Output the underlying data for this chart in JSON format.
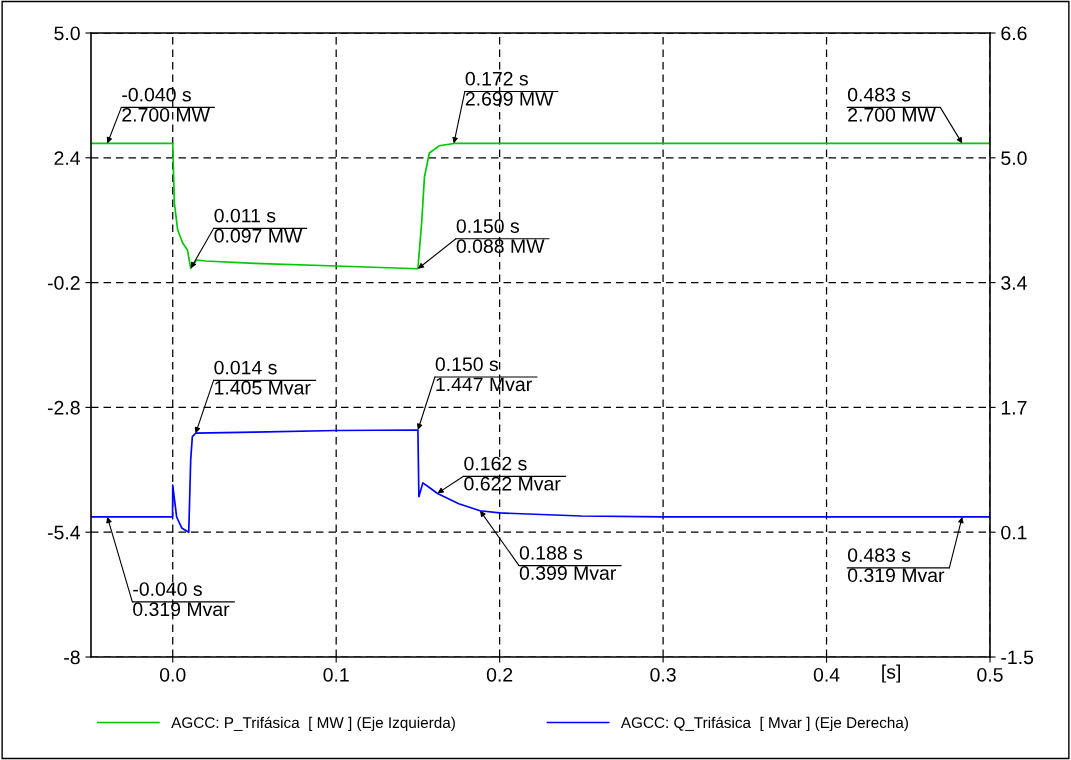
{
  "chart_data": {
    "type": "line",
    "xlabel": "[s]",
    "x": [
      -0.05,
      0.0,
      0.001,
      0.003,
      0.006,
      0.009,
      0.011,
      0.0147,
      0.02,
      0.05,
      0.1,
      0.15,
      0.1524,
      0.154,
      0.157,
      0.163,
      0.172,
      0.2,
      0.3,
      0.4,
      0.483,
      0.5
    ],
    "xlim": [
      -0.05,
      0.5
    ],
    "xticks": [
      {
        "value": 0,
        "label": "0.0"
      },
      0.1,
      0.2,
      0.3,
      0.4,
      0.5
    ],
    "ylim": [
      -8,
      5
    ],
    "yticks": [
      -8,
      -5.4,
      -2.8,
      -0.2,
      2.4,
      {
        "value": 5,
        "label": "5.0"
      }
    ],
    "y2lim": [
      -1.5,
      6.6
    ],
    "y2ticks": [
      -1.5,
      {
        "value": 0.12,
        "label": "0.1"
      },
      {
        "value": 1.74,
        "label": "1.7"
      },
      {
        "value": 3.36,
        "label": "3.4"
      },
      {
        "value": 4.98,
        "label": "5.0"
      },
      6.6
    ],
    "grid": true,
    "legend": "bottom",
    "line_style": "solid",
    "marker": "none",
    "series": [
      {
        "name": "AGCC: P_Trifásica  [ MW ] (Eje Izquierda)",
        "color": "#00c800",
        "values": [
          2.7,
          2.7,
          1.46,
          0.9,
          0.63,
          0.48,
          0.097,
          0.27,
          0.25,
          0.2,
          0.146,
          0.088,
          1.1,
          2.0,
          2.5,
          2.65,
          2.699,
          2.7,
          2.7,
          2.7,
          2.7,
          2.7
        ]
      },
      {
        "name": "AGCC: Q_Trifásica  [ Mvar ] (Eje Derecha)",
        "color": "#0000ff",
        "axis": "y2",
        "x": [
          -0.05,
          -0.0001,
          0.0,
          0.0024,
          0.0055,
          0.0098,
          0.011,
          0.012,
          0.014,
          0.05,
          0.1,
          0.15,
          0.1506,
          0.153,
          0.157,
          0.162,
          0.175,
          0.188,
          0.2,
          0.25,
          0.3,
          0.4,
          0.483,
          0.5
        ],
        "values": [
          0.319,
          0.319,
          0.73,
          0.317,
          0.175,
          0.12,
          1.06,
          1.36,
          1.405,
          1.42,
          1.44,
          1.447,
          0.58,
          0.76,
          0.7,
          0.622,
          0.49,
          0.399,
          0.37,
          0.33,
          0.32,
          0.319,
          0.319,
          0.319
        ]
      }
    ],
    "annotations": [
      {
        "text": "-0.040 s\n2.700 MW",
        "x": -0.04,
        "y": 2.7
      },
      {
        "text": "0.011 s\n0.097 MW",
        "x": 0.011,
        "y": 0.097
      },
      {
        "text": "0.150 s\n0.088 MW",
        "x": 0.15,
        "y": 0.088
      },
      {
        "text": "0.172 s\n2.699 MW",
        "x": 0.172,
        "y": 2.699
      },
      {
        "text": "0.483 s\n2.700 MW",
        "x": 0.483,
        "y": 2.7
      },
      {
        "text": "-0.040 s\n0.319 Mvar",
        "x": -0.04,
        "y": -5.08
      },
      {
        "text": "0.014 s\n1.405 Mvar",
        "x": 0.014,
        "y": -3.34
      },
      {
        "text": "0.150 s\n1.447 Mvar",
        "x": 0.15,
        "y": -3.27
      },
      {
        "text": "0.162 s\n0.622 Mvar",
        "x": 0.162,
        "y": -4.59
      },
      {
        "text": "0.188 s\n0.399 Mvar",
        "x": 0.188,
        "y": -4.95
      },
      {
        "text": "0.483 s\n0.319 Mvar",
        "x": 0.483,
        "y": -5.08
      }
    ]
  }
}
